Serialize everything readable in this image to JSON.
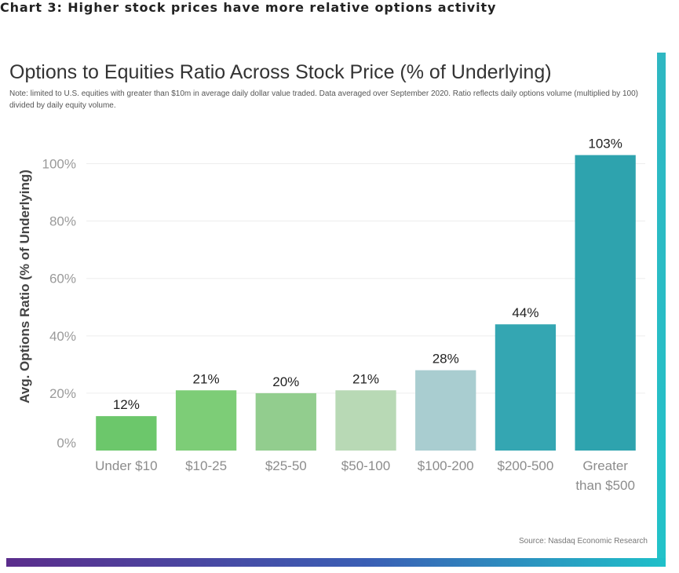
{
  "header": {
    "caption": "Chart 3: Higher stock prices have more relative options activity"
  },
  "chart_data": {
    "type": "bar",
    "title": "Options to Equities Ratio Across Stock Price (% of Underlying)",
    "note": "Note: limited to U.S. equities with greater than $10m in average daily dollar value traded. Data averaged over September 2020. Ratio reflects daily options volume (multiplied by 100) divided by daily equity volume.",
    "ylabel": "Avg. Options Ratio (% of Underlying)",
    "xlabel": "",
    "ylim": [
      0,
      110
    ],
    "yticks": [
      0,
      20,
      40,
      60,
      80,
      100
    ],
    "ytick_labels": [
      "0%",
      "20%",
      "40%",
      "60%",
      "80%",
      "100%"
    ],
    "categories": [
      "Under $10",
      "$10-25",
      "$25-50",
      "$50-100",
      "$100-200",
      "$200-500",
      "Greater than $500"
    ],
    "values": [
      12,
      21,
      20,
      21,
      28,
      44,
      103
    ],
    "value_labels": [
      "12%",
      "21%",
      "20%",
      "21%",
      "28%",
      "44%",
      "103%"
    ],
    "colors": [
      "#6cc76b",
      "#7dcd77",
      "#92cd8e",
      "#b8d9b5",
      "#a9cdd0",
      "#34a6b2",
      "#2ea3ae"
    ],
    "grid": true,
    "source": "Source: Nasdaq Economic Research"
  }
}
